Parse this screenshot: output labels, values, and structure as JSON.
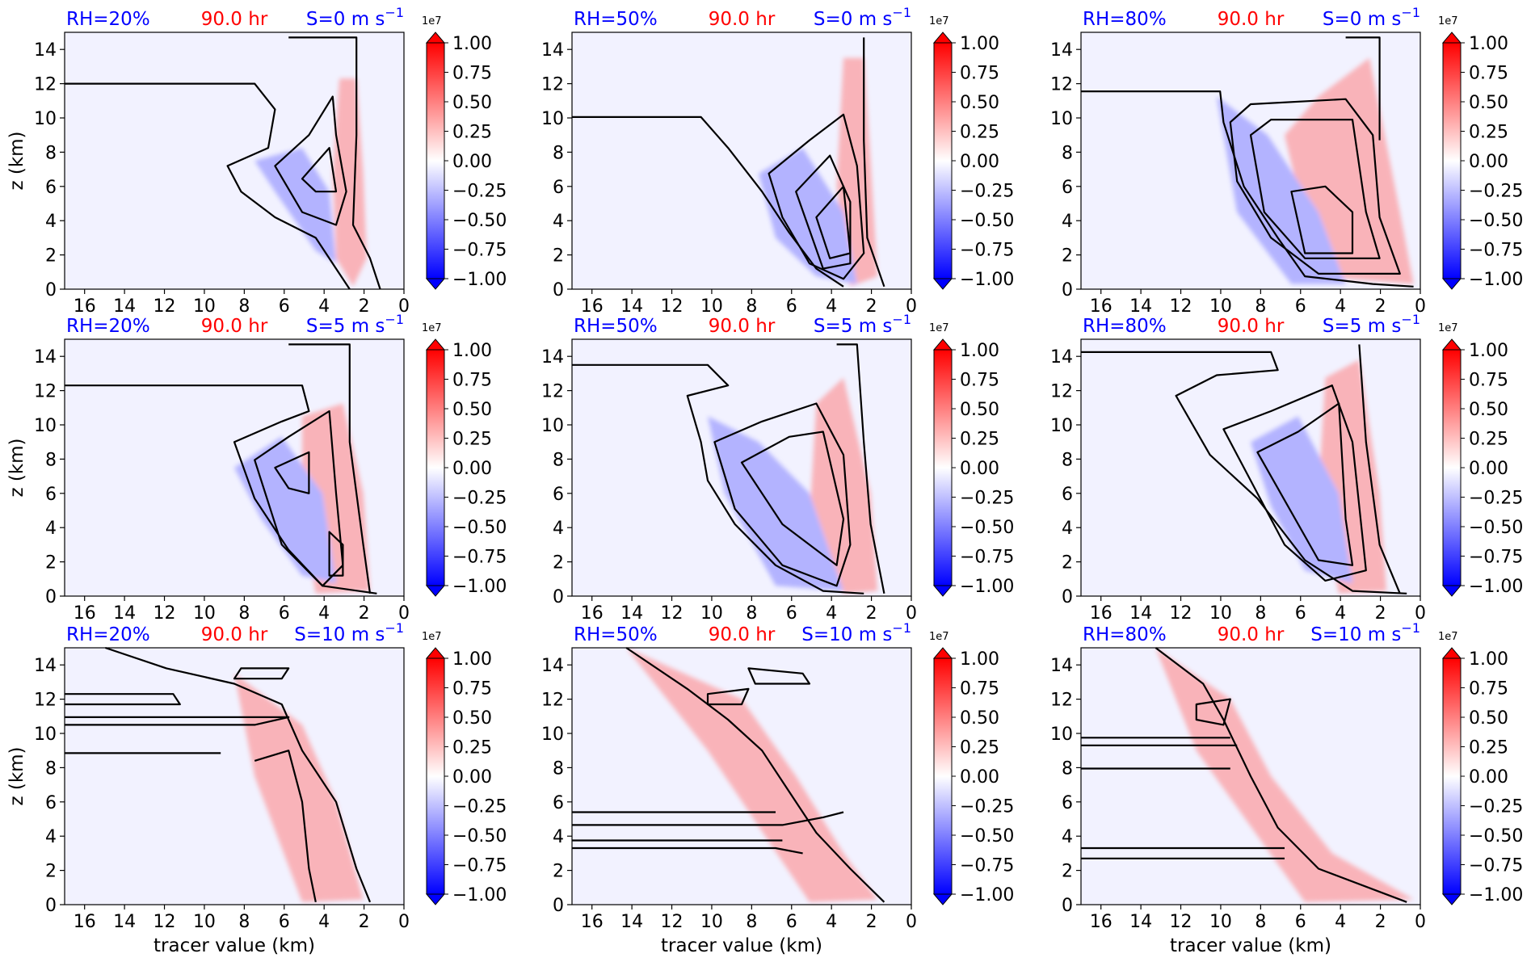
{
  "figure": {
    "time_label": "90.0 hr",
    "xlabel": "tracer value (km)",
    "ylabel": "z (km)",
    "colorbar": {
      "exponent_label": "1e7",
      "ticks": [
        "1.00",
        "0.75",
        "0.50",
        "0.25",
        "0.00",
        "−0.25",
        "−0.50",
        "−0.75",
        "−1.00"
      ],
      "range": [
        -1.0,
        1.0
      ],
      "cmap": "bwr",
      "extend": "both"
    }
  },
  "colors": {
    "rh_label": "#0000ff",
    "time_label": "#ff0000",
    "shear_label": "#0000ff",
    "background_field": "#f2f2ff",
    "contour": "#000000"
  },
  "chart_data": [
    {
      "type": "heatmap",
      "rh": "RH=20%",
      "shear": "S=0 m s",
      "shear_exp": "−1",
      "xlim": [
        17,
        0
      ],
      "ylim": [
        0,
        15
      ],
      "xticks": [
        "16",
        "14",
        "12",
        "10",
        "8",
        "6",
        "4",
        "2",
        "0"
      ],
      "yticks": [
        "0",
        "2",
        "4",
        "6",
        "8",
        "10",
        "12",
        "14"
      ],
      "show_xlabel": false,
      "show_ylabel": true
    },
    {
      "type": "heatmap",
      "rh": "RH=50%",
      "shear": "S=0 m s",
      "shear_exp": "−1",
      "xlim": [
        17,
        0
      ],
      "ylim": [
        0,
        15
      ],
      "xticks": [
        "16",
        "14",
        "12",
        "10",
        "8",
        "6",
        "4",
        "2",
        "0"
      ],
      "yticks": [
        "0",
        "2",
        "4",
        "6",
        "8",
        "10",
        "12",
        "14"
      ],
      "show_xlabel": false,
      "show_ylabel": false
    },
    {
      "type": "heatmap",
      "rh": "RH=80%",
      "shear": "S=0 m s",
      "shear_exp": "−1",
      "xlim": [
        17,
        0
      ],
      "ylim": [
        0,
        15
      ],
      "xticks": [
        "16",
        "14",
        "12",
        "10",
        "8",
        "6",
        "4",
        "2",
        "0"
      ],
      "yticks": [
        "0",
        "2",
        "4",
        "6",
        "8",
        "10",
        "12",
        "14"
      ],
      "show_xlabel": false,
      "show_ylabel": false
    },
    {
      "type": "heatmap",
      "rh": "RH=20%",
      "shear": "S=5 m s",
      "shear_exp": "−1",
      "xlim": [
        17,
        0
      ],
      "ylim": [
        0,
        15
      ],
      "xticks": [
        "16",
        "14",
        "12",
        "10",
        "8",
        "6",
        "4",
        "2",
        "0"
      ],
      "yticks": [
        "0",
        "2",
        "4",
        "6",
        "8",
        "10",
        "12",
        "14"
      ],
      "show_xlabel": false,
      "show_ylabel": true
    },
    {
      "type": "heatmap",
      "rh": "RH=50%",
      "shear": "S=5 m s",
      "shear_exp": "−1",
      "xlim": [
        17,
        0
      ],
      "ylim": [
        0,
        15
      ],
      "xticks": [
        "16",
        "14",
        "12",
        "10",
        "8",
        "6",
        "4",
        "2",
        "0"
      ],
      "yticks": [
        "0",
        "2",
        "4",
        "6",
        "8",
        "10",
        "12",
        "14"
      ],
      "show_xlabel": false,
      "show_ylabel": false
    },
    {
      "type": "heatmap",
      "rh": "RH=80%",
      "shear": "S=5 m s",
      "shear_exp": "−1",
      "xlim": [
        17,
        0
      ],
      "ylim": [
        0,
        15
      ],
      "xticks": [
        "16",
        "14",
        "12",
        "10",
        "8",
        "6",
        "4",
        "2",
        "0"
      ],
      "yticks": [
        "0",
        "2",
        "4",
        "6",
        "8",
        "10",
        "12",
        "14"
      ],
      "show_xlabel": false,
      "show_ylabel": false
    },
    {
      "type": "heatmap",
      "rh": "RH=20%",
      "shear": "S=10 m s",
      "shear_exp": "−1",
      "xlim": [
        17,
        0
      ],
      "ylim": [
        0,
        15
      ],
      "xticks": [
        "16",
        "14",
        "12",
        "10",
        "8",
        "6",
        "4",
        "2",
        "0"
      ],
      "yticks": [
        "0",
        "2",
        "4",
        "6",
        "8",
        "10",
        "12",
        "14"
      ],
      "show_xlabel": true,
      "show_ylabel": true
    },
    {
      "type": "heatmap",
      "rh": "RH=50%",
      "shear": "S=10 m s",
      "shear_exp": "−1",
      "xlim": [
        17,
        0
      ],
      "ylim": [
        0,
        15
      ],
      "xticks": [
        "16",
        "14",
        "12",
        "10",
        "8",
        "6",
        "4",
        "2",
        "0"
      ],
      "yticks": [
        "0",
        "2",
        "4",
        "6",
        "8",
        "10",
        "12",
        "14"
      ],
      "show_xlabel": true,
      "show_ylabel": false
    },
    {
      "type": "heatmap",
      "rh": "RH=80%",
      "shear": "S=10 m s",
      "shear_exp": "−1",
      "xlim": [
        17,
        0
      ],
      "ylim": [
        0,
        15
      ],
      "xticks": [
        "16",
        "14",
        "12",
        "10",
        "8",
        "6",
        "4",
        "2",
        "0"
      ],
      "yticks": [
        "0",
        "2",
        "4",
        "6",
        "8",
        "10",
        "12",
        "14"
      ],
      "show_xlabel": true,
      "show_ylabel": false
    }
  ]
}
